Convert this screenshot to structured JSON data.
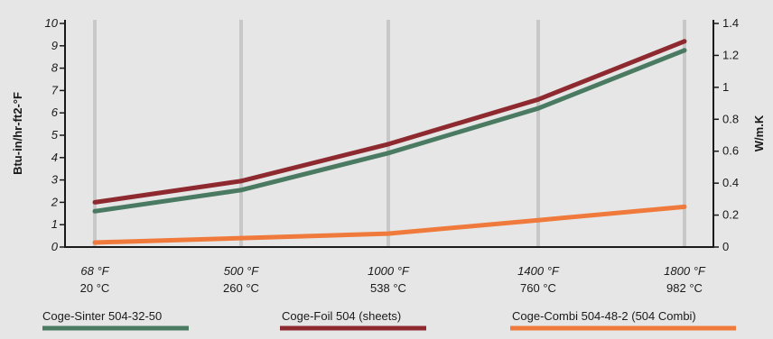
{
  "chart_data": {
    "type": "line",
    "title": "",
    "categories": [
      {
        "f": "68 °F",
        "c": "20 °C"
      },
      {
        "f": "500 °F",
        "c": "260 °C"
      },
      {
        "f": "1000 °F",
        "c": "538 °C"
      },
      {
        "f": "1400 °F",
        "c": "760 °C"
      },
      {
        "f": "1800 °F",
        "c": "982 °C"
      }
    ],
    "ylabel_left": "Btu-in/hr-ft2-°F",
    "ylabel_right": "W/m.K",
    "ylim_left": [
      0,
      10
    ],
    "ylim_right": [
      0,
      1.4
    ],
    "yticks_left": [
      "0",
      "1",
      "2",
      "3",
      "4",
      "5",
      "6",
      "7",
      "8",
      "9",
      "10"
    ],
    "yticks_right": [
      "0",
      "0.2",
      "0.4",
      "0.6",
      "0.8",
      "1",
      "1.2",
      "1.4"
    ],
    "grid": "vertical",
    "legend_position": "bottom",
    "series": [
      {
        "name": "Coge-Sinter 504-32-50",
        "color": "#4a7a62",
        "values": [
          1.6,
          2.55,
          4.2,
          6.2,
          8.8
        ]
      },
      {
        "name": "Coge-Foil 504 (sheets)",
        "color": "#8e2a2f",
        "values": [
          2.0,
          2.95,
          4.6,
          6.6,
          9.2
        ]
      },
      {
        "name": "Coge-Combi 504-48-2 (504 Combi)",
        "color": "#f07a3c",
        "values": [
          0.2,
          0.4,
          0.6,
          1.2,
          1.8
        ]
      }
    ]
  }
}
